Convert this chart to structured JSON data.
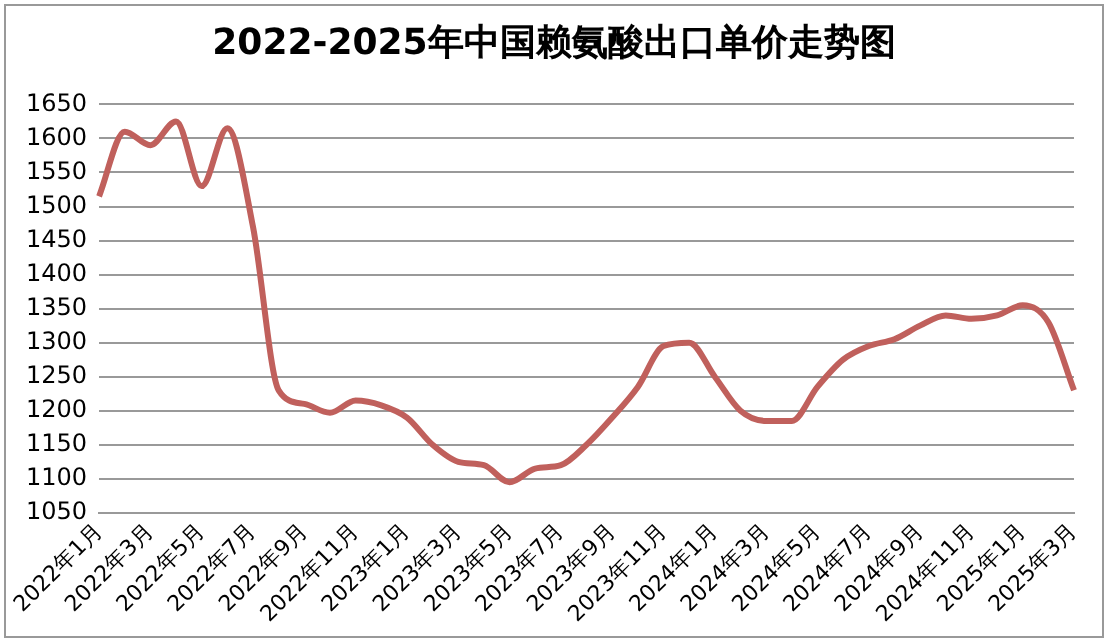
{
  "chart_data": {
    "type": "line",
    "title": "2022-2025年中国赖氨酸出口单价走势图",
    "categories": [
      "2022年1月",
      null,
      "2022年3月",
      null,
      "2022年5月",
      null,
      "2022年7月",
      null,
      "2022年9月",
      null,
      "2022年11月",
      null,
      "2023年1月",
      null,
      "2023年3月",
      null,
      "2023年5月",
      null,
      "2023年7月",
      null,
      "2023年9月",
      null,
      "2023年11月",
      null,
      "2024年1月",
      null,
      "2024年3月",
      null,
      "2024年5月",
      null,
      "2024年7月",
      null,
      "2024年9月",
      null,
      "2024年11月",
      null,
      "2025年1月",
      null,
      "2025年3月"
    ],
    "series": [
      {
        "color": "#c0605c",
        "values": [
          1515,
          1610,
          1590,
          1625,
          1530,
          1615,
          1470,
          1230,
          1210,
          1197,
          1215,
          1208,
          1190,
          1150,
          1125,
          1120,
          1095,
          1115,
          1120,
          1150,
          1190,
          1235,
          1295,
          1300,
          1250,
          1200,
          1185,
          1185,
          1235,
          1275,
          1295,
          1305,
          1325,
          1340,
          1335,
          1340,
          1355,
          1330,
          1230
        ]
      }
    ],
    "ylim": [
      1050,
      1650
    ],
    "yticks": [
      1050,
      1100,
      1150,
      1200,
      1250,
      1300,
      1350,
      1400,
      1450,
      1500,
      1550,
      1600,
      1650
    ],
    "grid": "y",
    "legend": false,
    "marker": "none",
    "line_style": "solid"
  }
}
